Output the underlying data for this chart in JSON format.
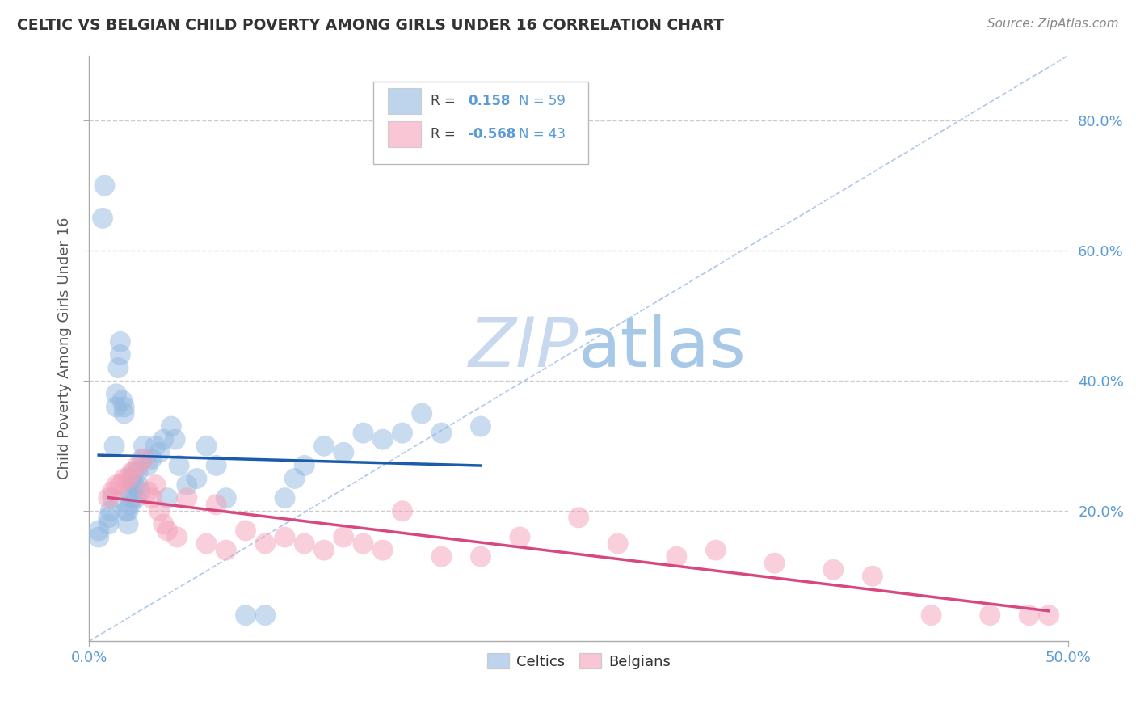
{
  "title": "CELTIC VS BELGIAN CHILD POVERTY AMONG GIRLS UNDER 16 CORRELATION CHART",
  "source": "Source: ZipAtlas.com",
  "ylabel": "Child Poverty Among Girls Under 16",
  "xlim": [
    0.0,
    0.5
  ],
  "ylim": [
    0.0,
    0.9
  ],
  "ytick_values": [
    0.2,
    0.4,
    0.6,
    0.8
  ],
  "ytick_labels": [
    "20.0%",
    "40.0%",
    "60.0%",
    "80.0%"
  ],
  "xtick_values": [
    0.0,
    0.5
  ],
  "xtick_labels": [
    "0.0%",
    "50.0%"
  ],
  "legend_r1": "0.158",
  "legend_n1": "59",
  "legend_r2": "-0.568",
  "legend_n2": "43",
  "celtic_color": "#92b8e0",
  "belgian_color": "#f4a0b8",
  "trend_celtic_color": "#1a5caa",
  "trend_belgian_color": "#d84880",
  "diag_line_color": "#b0c8e8",
  "watermark_text": "ZIPatlas",
  "watermark_color_zip": "#c8d8ee",
  "watermark_color_atlas": "#a8c8e8",
  "background_color": "#ffffff",
  "grid_color": "#cccccc",
  "tick_label_color": "#5b9bd5",
  "title_color": "#333333",
  "source_color": "#888888",
  "ylabel_color": "#555555",
  "legend_box_color": "#dddddd",
  "celtic_points_x": [
    0.005,
    0.005,
    0.007,
    0.008,
    0.01,
    0.01,
    0.011,
    0.012,
    0.013,
    0.014,
    0.014,
    0.015,
    0.016,
    0.016,
    0.017,
    0.018,
    0.018,
    0.019,
    0.02,
    0.02,
    0.021,
    0.021,
    0.022,
    0.022,
    0.023,
    0.023,
    0.024,
    0.025,
    0.025,
    0.026,
    0.027,
    0.028,
    0.03,
    0.032,
    0.034,
    0.036,
    0.038,
    0.04,
    0.042,
    0.044,
    0.046,
    0.05,
    0.055,
    0.06,
    0.065,
    0.07,
    0.08,
    0.09,
    0.1,
    0.105,
    0.11,
    0.12,
    0.13,
    0.14,
    0.15,
    0.16,
    0.17,
    0.18,
    0.2
  ],
  "celtic_points_y": [
    0.16,
    0.17,
    0.65,
    0.7,
    0.18,
    0.19,
    0.2,
    0.22,
    0.3,
    0.36,
    0.38,
    0.42,
    0.44,
    0.46,
    0.37,
    0.35,
    0.36,
    0.2,
    0.18,
    0.2,
    0.21,
    0.23,
    0.22,
    0.25,
    0.24,
    0.26,
    0.22,
    0.24,
    0.26,
    0.23,
    0.28,
    0.3,
    0.27,
    0.28,
    0.3,
    0.29,
    0.31,
    0.22,
    0.33,
    0.31,
    0.27,
    0.24,
    0.25,
    0.3,
    0.27,
    0.22,
    0.04,
    0.04,
    0.22,
    0.25,
    0.27,
    0.3,
    0.29,
    0.32,
    0.31,
    0.32,
    0.35,
    0.32,
    0.33
  ],
  "belgian_points_x": [
    0.01,
    0.012,
    0.014,
    0.016,
    0.018,
    0.02,
    0.022,
    0.025,
    0.028,
    0.03,
    0.032,
    0.034,
    0.036,
    0.038,
    0.04,
    0.045,
    0.05,
    0.06,
    0.065,
    0.07,
    0.08,
    0.09,
    0.1,
    0.11,
    0.12,
    0.13,
    0.14,
    0.15,
    0.16,
    0.18,
    0.2,
    0.22,
    0.25,
    0.27,
    0.3,
    0.32,
    0.35,
    0.38,
    0.4,
    0.43,
    0.46,
    0.48,
    0.49
  ],
  "belgian_points_y": [
    0.22,
    0.23,
    0.24,
    0.24,
    0.25,
    0.25,
    0.26,
    0.27,
    0.28,
    0.23,
    0.22,
    0.24,
    0.2,
    0.18,
    0.17,
    0.16,
    0.22,
    0.15,
    0.21,
    0.14,
    0.17,
    0.15,
    0.16,
    0.15,
    0.14,
    0.16,
    0.15,
    0.14,
    0.2,
    0.13,
    0.13,
    0.16,
    0.19,
    0.15,
    0.13,
    0.14,
    0.12,
    0.11,
    0.1,
    0.04,
    0.04,
    0.04,
    0.04
  ],
  "diag_line_x": [
    0.0,
    0.5
  ],
  "diag_line_y": [
    0.0,
    0.9
  ]
}
